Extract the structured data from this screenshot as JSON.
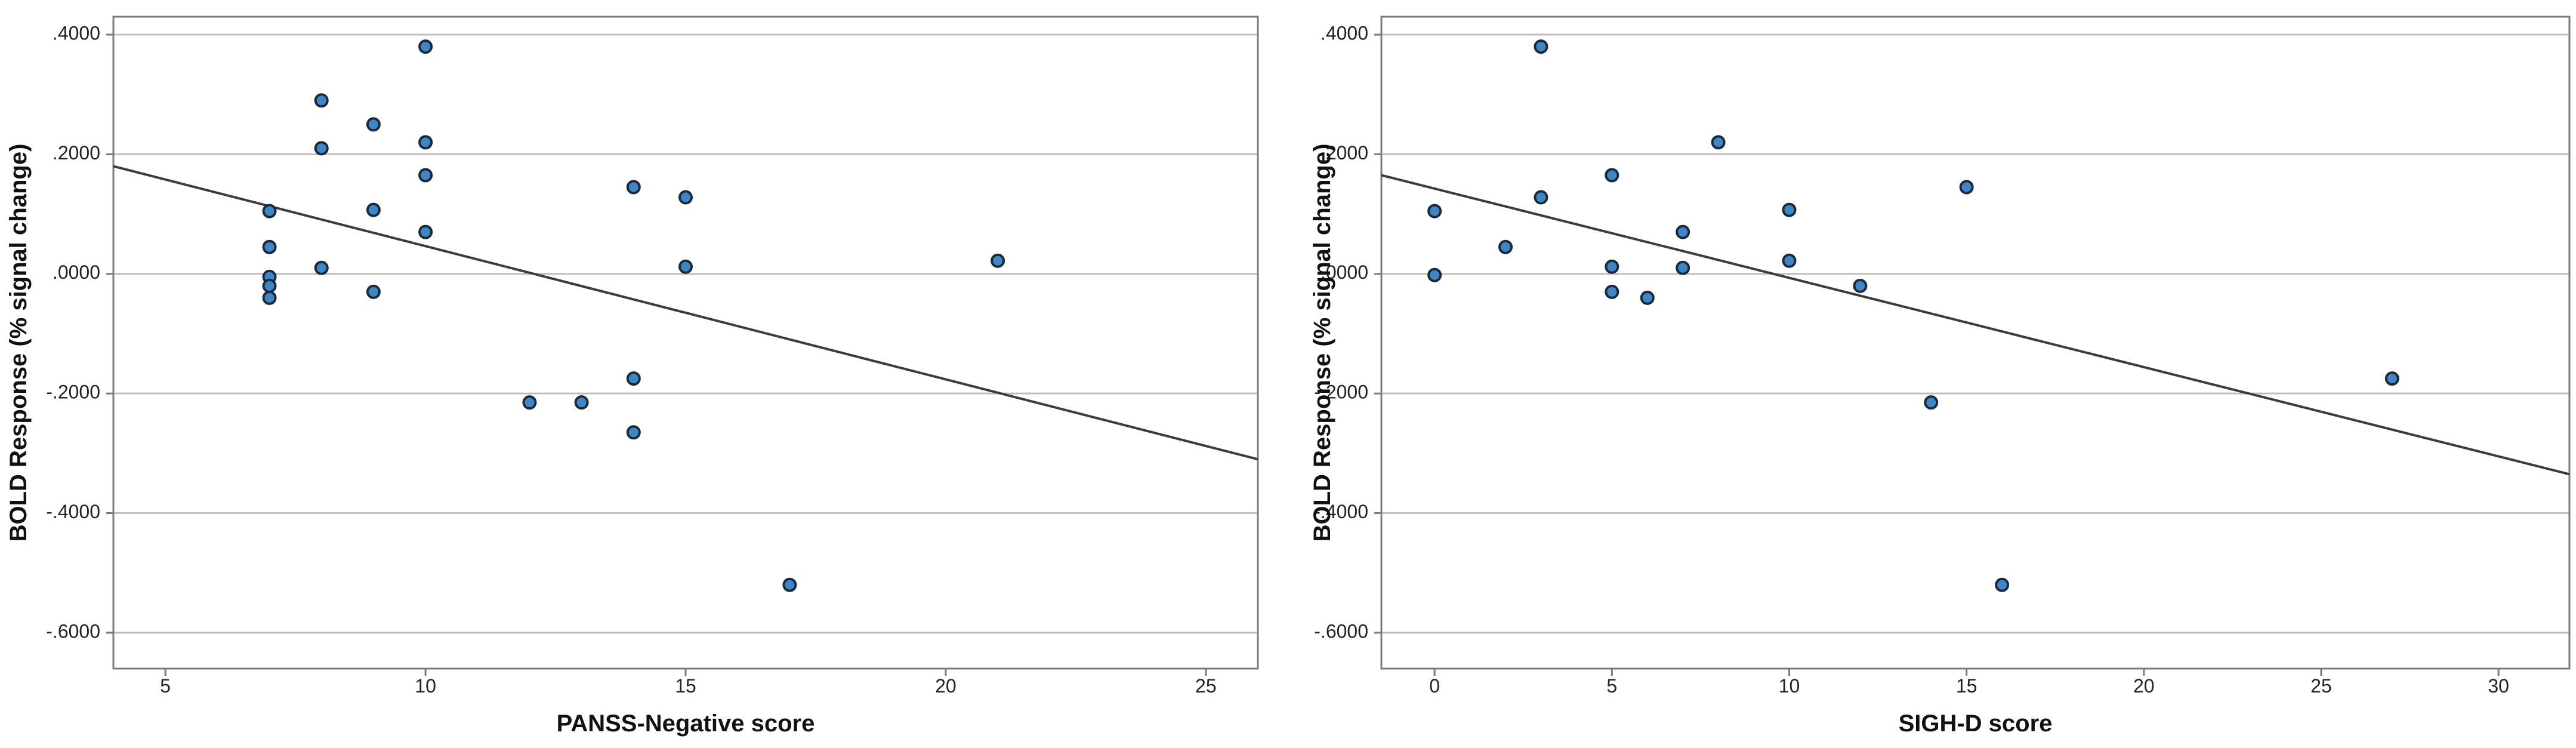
{
  "chart_data": [
    {
      "type": "scatter",
      "xlabel": "PANSS-Negative score",
      "ylabel": "BOLD Response (% signal change)",
      "xlim": [
        4,
        26
      ],
      "ylim": [
        -0.66,
        0.43
      ],
      "x_ticks": [
        5,
        10,
        15,
        20,
        25
      ],
      "x_tick_labels": [
        "5",
        "10",
        "15",
        "20",
        "25"
      ],
      "y_ticks": [
        0.4,
        0.2,
        0.0,
        -0.2,
        -0.4,
        -0.6
      ],
      "y_tick_labels": [
        ".4000",
        ".2000",
        ".0000",
        "-.2000",
        "-.4000",
        "-.6000"
      ],
      "grid": true,
      "fit_line": {
        "x": [
          4,
          26
        ],
        "y": [
          0.18,
          -0.31
        ]
      },
      "points": [
        {
          "x": 7,
          "y": 0.105
        },
        {
          "x": 7,
          "y": 0.045
        },
        {
          "x": 7,
          "y": -0.005
        },
        {
          "x": 7,
          "y": -0.02
        },
        {
          "x": 7,
          "y": -0.04
        },
        {
          "x": 8,
          "y": 0.29
        },
        {
          "x": 8,
          "y": 0.21
        },
        {
          "x": 8,
          "y": 0.01
        },
        {
          "x": 9,
          "y": 0.25
        },
        {
          "x": 9,
          "y": 0.107
        },
        {
          "x": 9,
          "y": -0.03
        },
        {
          "x": 10,
          "y": 0.38
        },
        {
          "x": 10,
          "y": 0.22
        },
        {
          "x": 10,
          "y": 0.165
        },
        {
          "x": 10,
          "y": 0.07
        },
        {
          "x": 12,
          "y": -0.215
        },
        {
          "x": 13,
          "y": -0.215
        },
        {
          "x": 14,
          "y": 0.145
        },
        {
          "x": 14,
          "y": -0.175
        },
        {
          "x": 14,
          "y": -0.265
        },
        {
          "x": 15,
          "y": 0.128
        },
        {
          "x": 15,
          "y": 0.012
        },
        {
          "x": 17,
          "y": -0.52
        },
        {
          "x": 21,
          "y": 0.022
        }
      ]
    },
    {
      "type": "scatter",
      "xlabel": "SIGH-D score",
      "ylabel": "BOLD Response (% signal change)",
      "xlim": [
        -1.5,
        32
      ],
      "ylim": [
        -0.66,
        0.43
      ],
      "x_ticks": [
        0,
        5,
        10,
        15,
        20,
        25,
        30
      ],
      "x_tick_labels": [
        "0",
        "5",
        "10",
        "15",
        "20",
        "25",
        "30"
      ],
      "y_ticks": [
        0.4,
        0.2,
        0.0,
        -0.2,
        -0.4,
        -0.6
      ],
      "y_tick_labels": [
        ".4000",
        ".2000",
        ".0000",
        "-.2000",
        "-.4000",
        "-.6000"
      ],
      "grid": true,
      "fit_line": {
        "x": [
          -1.5,
          32
        ],
        "y": [
          0.165,
          -0.335
        ]
      },
      "points": [
        {
          "x": 0,
          "y": 0.105
        },
        {
          "x": 0,
          "y": -0.002
        },
        {
          "x": 2,
          "y": 0.045
        },
        {
          "x": 3,
          "y": 0.38
        },
        {
          "x": 3,
          "y": 0.128
        },
        {
          "x": 5,
          "y": 0.165
        },
        {
          "x": 5,
          "y": 0.012
        },
        {
          "x": 5,
          "y": -0.03
        },
        {
          "x": 6,
          "y": -0.04
        },
        {
          "x": 7,
          "y": 0.07
        },
        {
          "x": 7,
          "y": 0.01
        },
        {
          "x": 8,
          "y": 0.22
        },
        {
          "x": 10,
          "y": 0.107
        },
        {
          "x": 10,
          "y": 0.022
        },
        {
          "x": 12,
          "y": -0.02
        },
        {
          "x": 14,
          "y": -0.215
        },
        {
          "x": 15,
          "y": 0.145
        },
        {
          "x": 16,
          "y": -0.52
        },
        {
          "x": 27,
          "y": -0.175
        }
      ]
    }
  ]
}
